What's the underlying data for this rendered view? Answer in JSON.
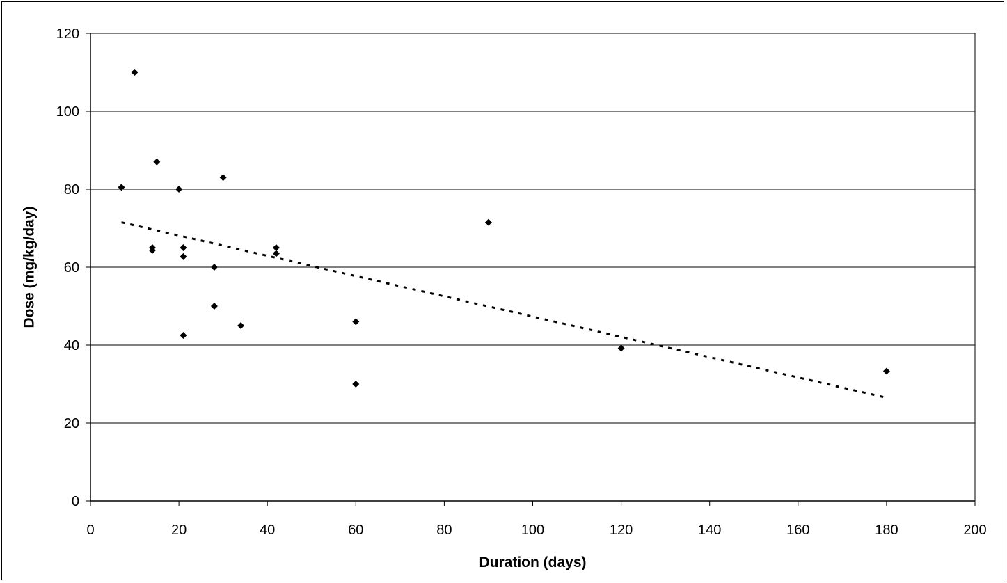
{
  "chart_data": {
    "type": "scatter",
    "title": "",
    "xlabel": "Duration (days)",
    "ylabel": "Dose (mg/kg/day)",
    "xlim": [
      0,
      200
    ],
    "ylim": [
      0,
      120
    ],
    "x_ticks": [
      0,
      20,
      40,
      60,
      80,
      100,
      120,
      140,
      160,
      180,
      200
    ],
    "y_ticks": [
      0,
      20,
      40,
      60,
      80,
      100,
      120
    ],
    "grid": "horizontal",
    "legend": "none",
    "marker": "diamond",
    "colors": {
      "marker": "#000000",
      "grid": "#000000",
      "trendline": "#000000"
    },
    "series": [
      {
        "points": [
          [
            7,
            80.5
          ],
          [
            10,
            110
          ],
          [
            14,
            65
          ],
          [
            14,
            64.3
          ],
          [
            15,
            87
          ],
          [
            20,
            80
          ],
          [
            21,
            65
          ],
          [
            21,
            62.7
          ],
          [
            21,
            42.5
          ],
          [
            28,
            60
          ],
          [
            28,
            50
          ],
          [
            30,
            83
          ],
          [
            34,
            45
          ],
          [
            42,
            65
          ],
          [
            42,
            63.5
          ],
          [
            60,
            46
          ],
          [
            60,
            30
          ],
          [
            90,
            71.5
          ],
          [
            120,
            39.2
          ],
          [
            180,
            33.3
          ]
        ]
      }
    ],
    "trendline": {
      "type": "linear",
      "style": "dotted",
      "start": [
        7,
        71.5
      ],
      "end": [
        180,
        26.5
      ]
    }
  }
}
